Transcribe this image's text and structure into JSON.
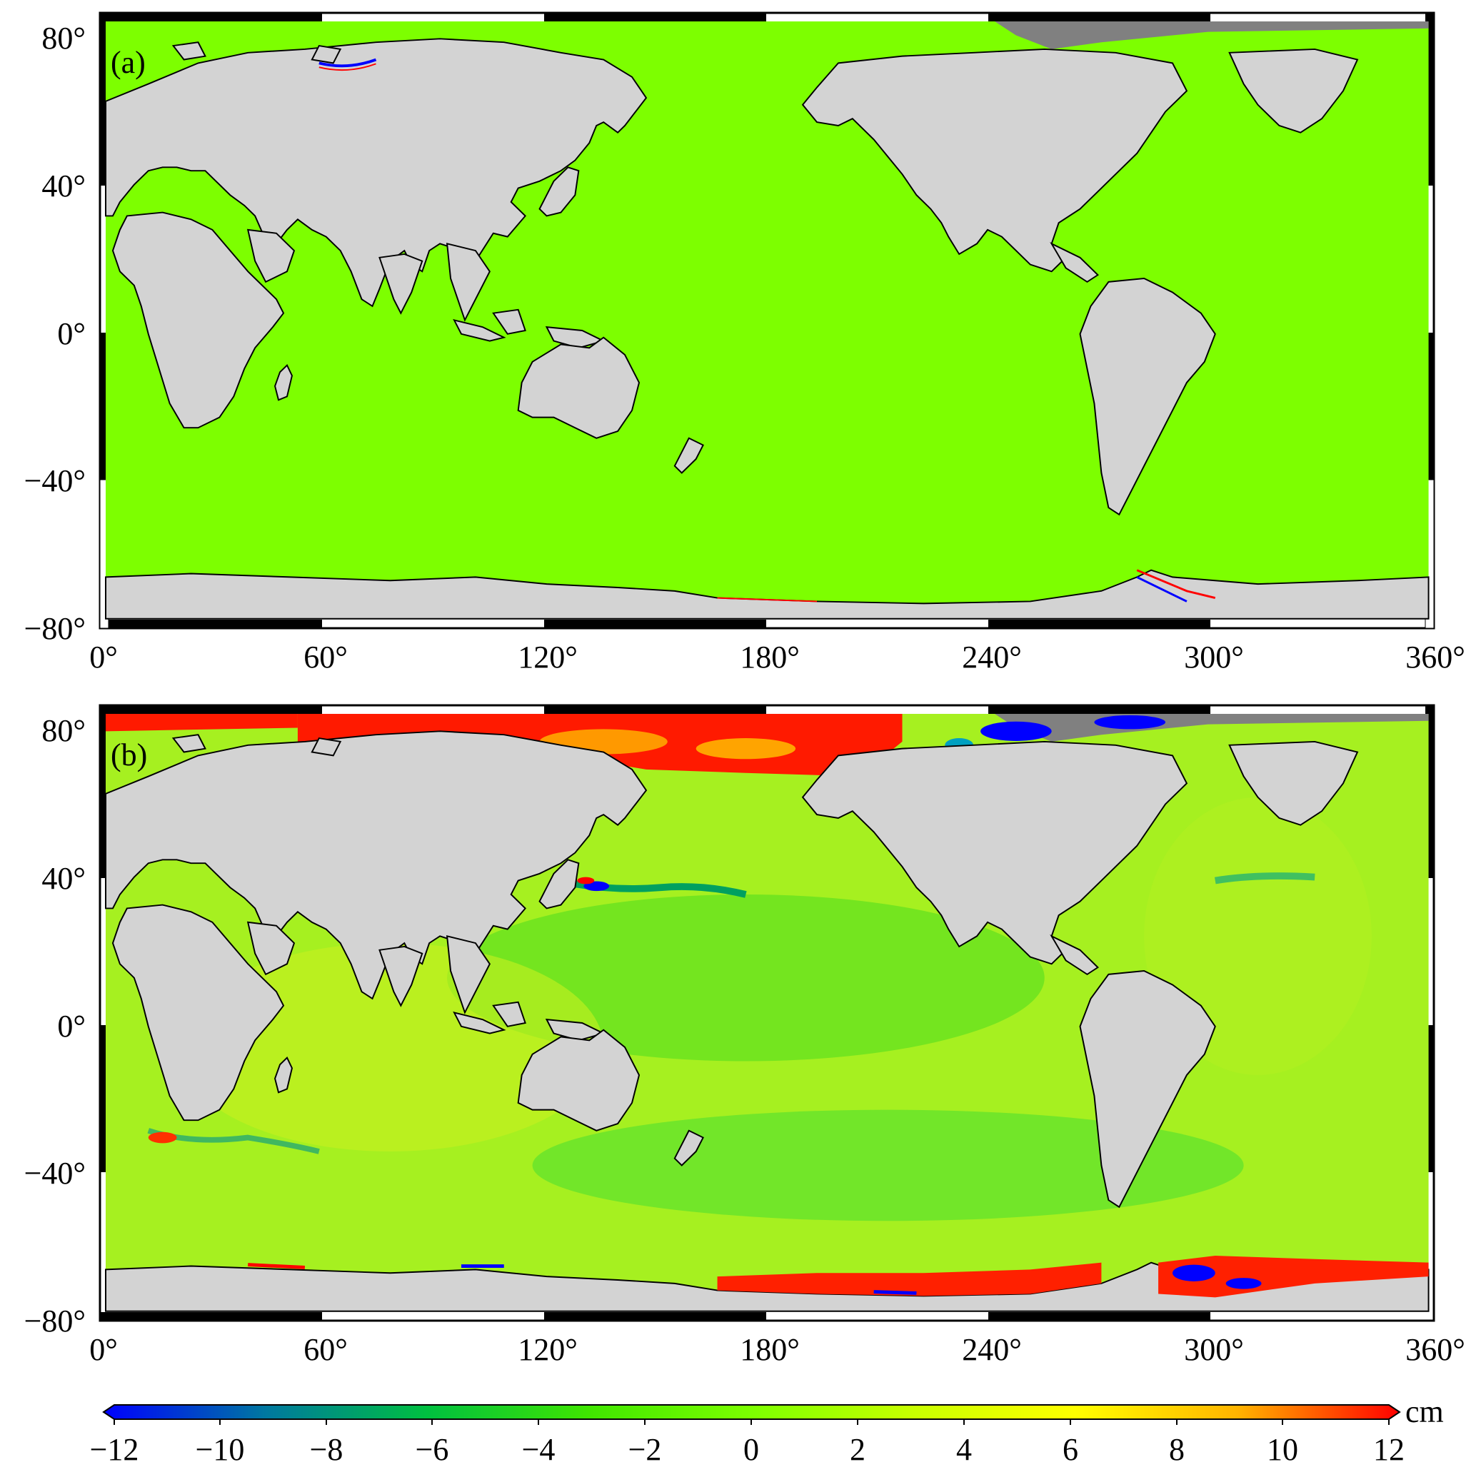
{
  "figure": {
    "colors": {
      "ocean_panel_a": "#7dff00",
      "land": "#d3d3d3",
      "ice_cap": "#808080",
      "coast": "#000000",
      "frame_black": "#000000",
      "frame_white": "#ffffff"
    },
    "panels": [
      {
        "id": "a",
        "label": "(a)",
        "description_colors": "nearly uniform green; small red/blue noise along polar coasts",
        "x_ticks": [
          "0°",
          "60°",
          "120°",
          "180°",
          "240°",
          "300°",
          "360°"
        ],
        "y_ticks": [
          "80°",
          "40°",
          "0°",
          "−40°",
          "−80°"
        ]
      },
      {
        "id": "b",
        "label": "(b)",
        "x_ticks": [
          "0°",
          "60°",
          "120°",
          "180°",
          "240°",
          "300°",
          "360°"
        ],
        "y_ticks": [
          "80°",
          "40°",
          "0°",
          "−40°",
          "−80°"
        ]
      }
    ],
    "colorbar": {
      "unit": "cm",
      "ticks": [
        "−12",
        "−10",
        "−8",
        "−6",
        "−4",
        "−2",
        "0",
        "2",
        "4",
        "6",
        "8",
        "10",
        "12"
      ],
      "range": [
        -12,
        12
      ],
      "stops": [
        "#0000ff",
        "#0078a0",
        "#00c040",
        "#40e600",
        "#7dff00",
        "#c8ff00",
        "#ffff00",
        "#ffb400",
        "#ff0000"
      ],
      "extend": "both"
    }
  }
}
